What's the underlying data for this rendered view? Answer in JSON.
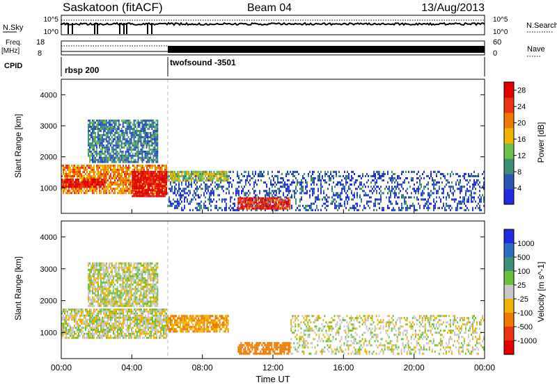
{
  "header": {
    "title": "Saskatoon (fitACF)",
    "beam": "Beam 04",
    "date": "13/Aug/2013"
  },
  "strips": {
    "nsky_label": "N.Sky",
    "nsky_ticks": [
      "10^5",
      "10^0"
    ],
    "nsearch_label": "N.Search",
    "nsearch_ticks": [
      "10^5",
      "10^0"
    ],
    "freq_label": "Freq.",
    "freq_unit": "[MHz]",
    "freq_ticks": [
      "18",
      "8"
    ],
    "nave_label": "Nave",
    "nave_ticks": [
      "60",
      "0"
    ],
    "cpid_label": "CPID",
    "cpid_segments": [
      {
        "label": "rbsp 200",
        "start_hour": 0,
        "end_hour": 6
      },
      {
        "label": "twofsound -3501",
        "start_hour": 6,
        "end_hour": 24
      }
    ]
  },
  "chart_data": [
    {
      "type": "heatmap",
      "title": "",
      "quantity": "Power",
      "colorbar_label": "Power [dB]",
      "xlabel": "Time UT",
      "ylabel": "Slant Range [km]",
      "xlim": [
        0,
        24
      ],
      "ylim": [
        180,
        4500
      ],
      "x_ticks": [
        "00:00",
        "04:00",
        "08:00",
        "12:00",
        "16:00",
        "20:00",
        "00:00"
      ],
      "y_ticks": [
        1000,
        2000,
        3000,
        4000
      ],
      "colorbar_ticks": [
        4,
        8,
        12,
        16,
        20,
        24,
        28
      ],
      "colorbar_range": [
        0,
        30
      ],
      "colors": [
        "#1f2bdc",
        "#2d56b4",
        "#3e8f78",
        "#6cbf4a",
        "#f0b400",
        "#f07a00",
        "#e83410",
        "#e00000"
      ],
      "mode_change_hour": 6,
      "echo_regions": [
        {
          "t0": 0.0,
          "t1": 6.0,
          "r0": 800,
          "r1": 1750,
          "level": 20
        },
        {
          "t0": 0.0,
          "t1": 2.5,
          "r0": 1000,
          "r1": 1300,
          "level": 28
        },
        {
          "t0": 4.0,
          "t1": 6.0,
          "r0": 700,
          "r1": 1550,
          "level": 29
        },
        {
          "t0": 1.5,
          "t1": 5.5,
          "r0": 1800,
          "r1": 3200,
          "level": 8
        },
        {
          "t0": 6.0,
          "t1": 24.0,
          "r0": 250,
          "r1": 1550,
          "level": 5
        },
        {
          "t0": 6.0,
          "t1": 9.5,
          "r0": 1200,
          "r1": 1550,
          "level": 14
        },
        {
          "t0": 10.0,
          "t1": 13.0,
          "r0": 300,
          "r1": 700,
          "level": 26
        }
      ]
    },
    {
      "type": "heatmap",
      "title": "",
      "quantity": "Velocity",
      "colorbar_label": "Velocity [m s^-1]",
      "xlabel": "Time UT",
      "ylabel": "Slant Range [km]",
      "xlim": [
        0,
        24
      ],
      "ylim": [
        180,
        4500
      ],
      "x_ticks": [
        "00:00",
        "04:00",
        "08:00",
        "12:00",
        "16:00",
        "20:00",
        "00:00"
      ],
      "y_ticks": [
        1000,
        2000,
        3000,
        4000
      ],
      "colorbar_ticks": [
        "1000",
        "500",
        "100",
        "25",
        "-25",
        "-100",
        "-500",
        "-1000"
      ],
      "colors": [
        "#1f2bdc",
        "#2d6cc0",
        "#3e8f78",
        "#6cc040",
        "#c8c8c8",
        "#f0b400",
        "#f07a00",
        "#e83410",
        "#e00000"
      ],
      "mode_change_hour": 6,
      "echo_regions": [
        {
          "t0": 0.0,
          "t1": 6.0,
          "r0": 800,
          "r1": 1750,
          "level": 0
        },
        {
          "t0": 1.5,
          "t1": 5.5,
          "r0": 1800,
          "r1": 3200,
          "level": 0
        },
        {
          "t0": 6.0,
          "t1": 9.5,
          "r0": 1000,
          "r1": 1550,
          "level": -100
        },
        {
          "t0": 10.0,
          "t1": 13.0,
          "r0": 300,
          "r1": 700,
          "level": -200
        },
        {
          "t0": 13.0,
          "t1": 24.0,
          "r0": 300,
          "r1": 1550,
          "level": 0
        }
      ]
    }
  ]
}
